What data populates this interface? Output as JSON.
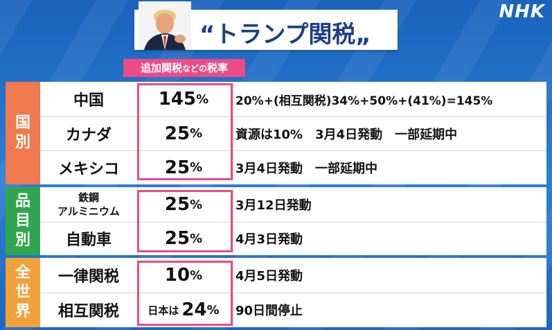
{
  "logo": "NHK",
  "title": "“トランプ関税„",
  "rate_label": {
    "main": "追加関税",
    "small": "などの",
    "end": "税率"
  },
  "groups": [
    {
      "label": [
        "国",
        "別"
      ],
      "rows": [
        {
          "item": "中国",
          "rate": "145",
          "unit": "%",
          "note": "20%+(相互関税)34%+50%+(41%)=145%"
        },
        {
          "item": "カナダ",
          "rate": "25",
          "unit": "%",
          "note": "資源は10%　3月4日発動　一部延期中"
        },
        {
          "item": "メキシコ",
          "rate": "25",
          "unit": "%",
          "note": "3月4日発動　一部延期中"
        }
      ]
    },
    {
      "label": [
        "品",
        "目",
        "別"
      ],
      "rows": [
        {
          "item_line1": "鉄鋼",
          "item_line2": "アルミニウム",
          "rate": "25",
          "unit": "%",
          "note": "3月12日発動"
        },
        {
          "item": "自動車",
          "rate": "25",
          "unit": "%",
          "note": "4月3日発動"
        }
      ]
    },
    {
      "label": [
        "全",
        "世",
        "界"
      ],
      "rows": [
        {
          "item": "一律関税",
          "rate": "10",
          "unit": "%",
          "note": "4月5日発動"
        },
        {
          "item": "相互関税",
          "rate_prefix": "日本は",
          "rate": "24",
          "unit": "%",
          "note": "90日間停止"
        }
      ]
    }
  ]
}
